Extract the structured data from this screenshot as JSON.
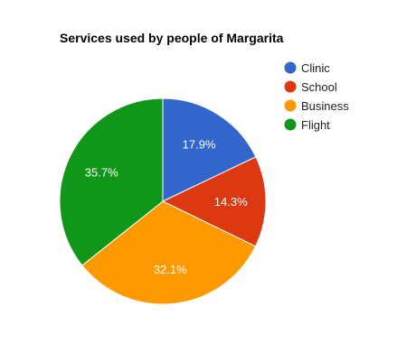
{
  "chart_data": {
    "type": "pie",
    "title": "Services used by people of Margarita",
    "categories": [
      "Clinic",
      "School",
      "Business",
      "Flight"
    ],
    "values": [
      17.9,
      14.3,
      32.1,
      35.7
    ],
    "labels": [
      "17.9%",
      "14.3%",
      "32.1%",
      "35.7%"
    ],
    "colors": [
      "#3366cc",
      "#dc3912",
      "#ff9900",
      "#109618"
    ],
    "legend_position": "right"
  }
}
